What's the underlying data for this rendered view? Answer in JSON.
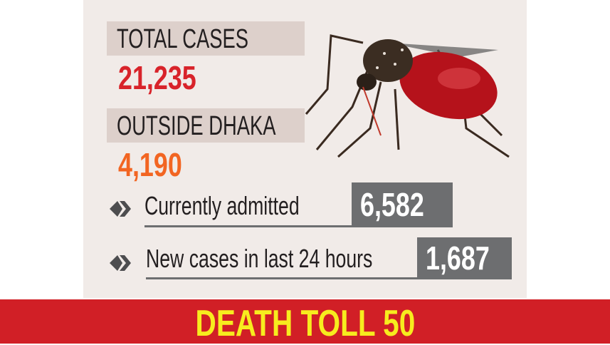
{
  "total_cases": {
    "label": "TOTAL CASES",
    "value": "21,235"
  },
  "outside_dhaka": {
    "label": "OUTSIDE DHAKA",
    "value": "4,190"
  },
  "rows": [
    {
      "label": "Currently admitted",
      "value": "6,582",
      "icon": "double-chevron-diamond-icon"
    },
    {
      "label": "New cases in last 24 hours",
      "value": "1,687",
      "icon": "double-chevron-diamond-icon"
    }
  ],
  "footer": {
    "death_toll": "DEATH TOLL 50"
  },
  "colors": {
    "total": "#d8232a",
    "outside": "#f26522",
    "footer_bg": "#d11f26",
    "footer_text": "#f7ec1e",
    "value_box": "#6d6e70"
  }
}
